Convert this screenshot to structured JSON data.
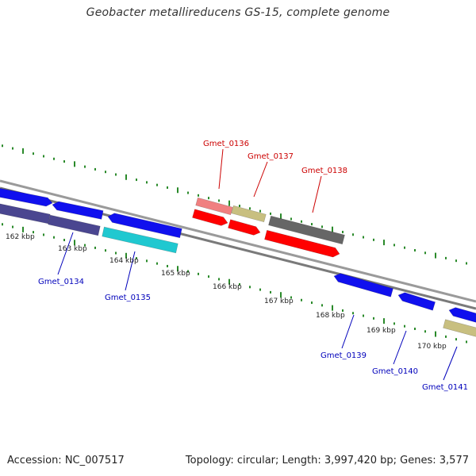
{
  "title": "Geobacter metallireducens GS-15, complete genome",
  "footer": {
    "accession": "Accession: NC_007517",
    "genome_info": "Topology: circular; Length: 3,997,420 bp; Genes: 3,577"
  },
  "kbp_labels": [
    "162 kbp",
    "163 kbp",
    "164 kbp",
    "165 kbp",
    "166 kbp",
    "167 kbp",
    "168 kbp",
    "169 kbp",
    "170 kbp"
  ],
  "gene_labels": [
    "Gmet_0134",
    "Gmet_0135",
    "Gmet_0136",
    "Gmet_0137",
    "Gmet_0138",
    "Gmet_0139",
    "Gmet_0140",
    "Gmet_0141"
  ],
  "colors": {
    "backbone": "#808080",
    "tick": "#2a8a2a",
    "label_red": "#cc0000",
    "label_blue": "#0000bb",
    "blue": "#1010ee",
    "slate": "#4a4690",
    "cyan": "#20c8d0",
    "pink": "#f08080",
    "khaki": "#c8bf80",
    "red": "#ff0000",
    "gray": "#666666"
  }
}
